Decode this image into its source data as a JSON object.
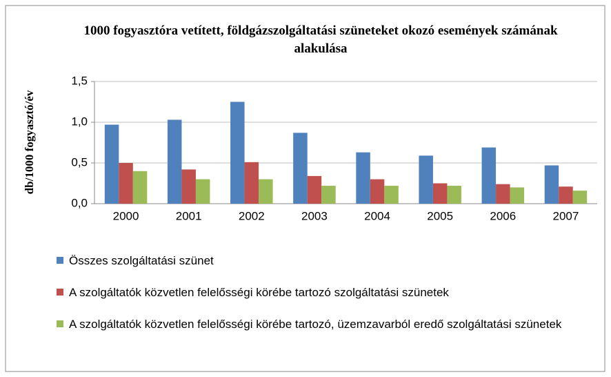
{
  "chart_data": {
    "type": "bar",
    "title": "1000 fogyasztóra vetített, földgázszolgáltatási szüneteket okozó események számának alakulása",
    "y_label": "db/1000 fogyasztó/év",
    "categories": [
      "2000",
      "2001",
      "2002",
      "2003",
      "2004",
      "2005",
      "2006",
      "2007"
    ],
    "series": [
      {
        "name": "Összes szolgáltatási szünet",
        "color": "#4f81bd",
        "values": [
          0.97,
          1.03,
          1.25,
          0.87,
          0.63,
          0.59,
          0.69,
          0.47
        ]
      },
      {
        "name": "A szolgáltatók közvetlen felelősségi körébe tartozó szolgáltatási szünetek",
        "color": "#c0504d",
        "values": [
          0.5,
          0.42,
          0.51,
          0.34,
          0.3,
          0.25,
          0.24,
          0.21
        ]
      },
      {
        "name": "A szolgáltatók közvetlen felelősségi körébe tartozó, üzemzavarból eredő szolgáltatási szünetek",
        "color": "#9bbb59",
        "values": [
          0.4,
          0.3,
          0.3,
          0.22,
          0.22,
          0.22,
          0.2,
          0.16
        ]
      }
    ],
    "ylim": [
      0,
      1.5
    ],
    "yticks": [
      {
        "value": 0,
        "label": "0,0"
      },
      {
        "value": 0.5,
        "label": "0,5"
      },
      {
        "value": 1,
        "label": "1,0"
      },
      {
        "value": 1.5,
        "label": "1,5"
      }
    ],
    "grid": true
  }
}
